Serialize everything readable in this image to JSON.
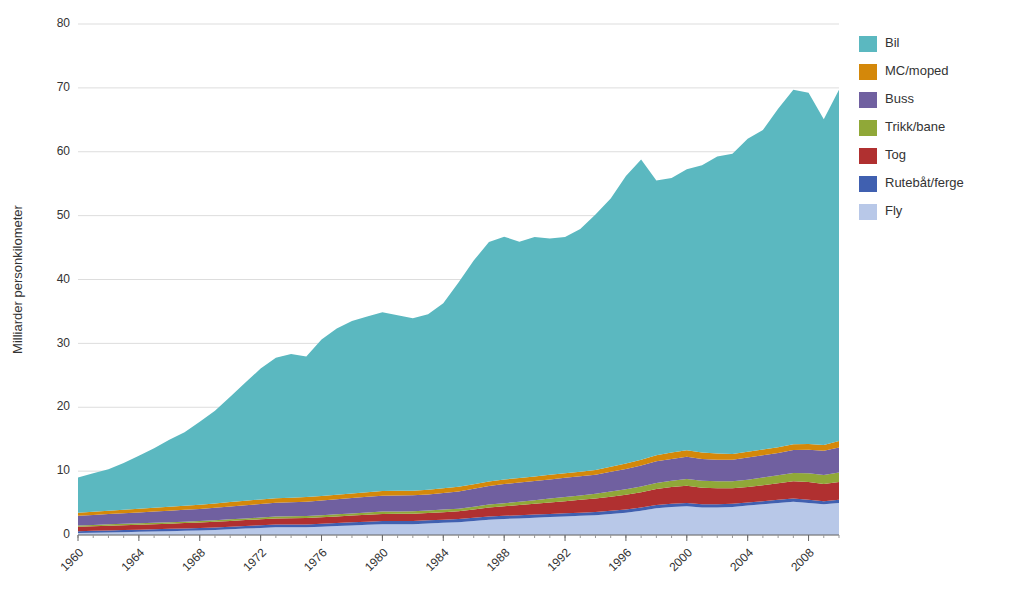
{
  "chart_data": {
    "type": "area",
    "stacked": true,
    "ylabel": "Milliarder personkilometer",
    "x": [
      1960,
      1961,
      1962,
      1963,
      1964,
      1965,
      1966,
      1967,
      1968,
      1969,
      1970,
      1971,
      1972,
      1973,
      1974,
      1975,
      1976,
      1977,
      1978,
      1979,
      1980,
      1981,
      1982,
      1983,
      1984,
      1985,
      1986,
      1987,
      1988,
      1989,
      1990,
      1991,
      1992,
      1993,
      1994,
      1995,
      1996,
      1997,
      1998,
      1999,
      2000,
      2001,
      2002,
      2003,
      2004,
      2005,
      2006,
      2007,
      2008,
      2009,
      2010
    ],
    "series": [
      {
        "name": "Fly",
        "color": "#B8C8E8",
        "values": [
          0.3,
          0.35,
          0.4,
          0.45,
          0.5,
          0.55,
          0.6,
          0.65,
          0.7,
          0.8,
          0.9,
          1.0,
          1.1,
          1.2,
          1.2,
          1.2,
          1.3,
          1.4,
          1.5,
          1.6,
          1.7,
          1.7,
          1.7,
          1.8,
          1.9,
          2.0,
          2.2,
          2.4,
          2.5,
          2.6,
          2.7,
          2.8,
          2.9,
          3.0,
          3.1,
          3.3,
          3.5,
          3.8,
          4.2,
          4.4,
          4.5,
          4.3,
          4.3,
          4.4,
          4.6,
          4.8,
          5.0,
          5.2,
          5.0,
          4.8,
          5.0
        ]
      },
      {
        "name": "Rutebåt/ferge",
        "color": "#4060B0",
        "values": [
          0.3,
          0.31,
          0.32,
          0.33,
          0.34,
          0.35,
          0.36,
          0.37,
          0.38,
          0.39,
          0.4,
          0.41,
          0.42,
          0.43,
          0.44,
          0.45,
          0.46,
          0.47,
          0.48,
          0.49,
          0.5,
          0.5,
          0.5,
          0.5,
          0.5,
          0.5,
          0.5,
          0.5,
          0.5,
          0.5,
          0.5,
          0.5,
          0.5,
          0.5,
          0.5,
          0.5,
          0.5,
          0.5,
          0.5,
          0.5,
          0.5,
          0.5,
          0.5,
          0.5,
          0.5,
          0.5,
          0.5,
          0.5,
          0.5,
          0.5,
          0.5
        ]
      },
      {
        "name": "Tog",
        "color": "#B03030",
        "values": [
          0.7,
          0.72,
          0.74,
          0.76,
          0.78,
          0.8,
          0.82,
          0.84,
          0.86,
          0.88,
          0.9,
          0.92,
          0.94,
          0.96,
          0.98,
          1.0,
          1.02,
          1.04,
          1.06,
          1.08,
          1.1,
          1.12,
          1.14,
          1.16,
          1.18,
          1.2,
          1.3,
          1.4,
          1.5,
          1.6,
          1.7,
          1.8,
          1.9,
          2.0,
          2.1,
          2.2,
          2.3,
          2.4,
          2.5,
          2.6,
          2.7,
          2.6,
          2.5,
          2.4,
          2.4,
          2.5,
          2.6,
          2.7,
          2.8,
          2.7,
          2.8
        ]
      },
      {
        "name": "Trikk/bane",
        "color": "#90A838",
        "values": [
          0.2,
          0.2,
          0.21,
          0.21,
          0.22,
          0.22,
          0.23,
          0.23,
          0.24,
          0.25,
          0.26,
          0.27,
          0.28,
          0.29,
          0.3,
          0.31,
          0.32,
          0.33,
          0.34,
          0.35,
          0.36,
          0.37,
          0.38,
          0.39,
          0.4,
          0.42,
          0.44,
          0.46,
          0.48,
          0.5,
          0.55,
          0.6,
          0.65,
          0.7,
          0.75,
          0.8,
          0.85,
          0.9,
          0.95,
          1.0,
          1.05,
          1.1,
          1.1,
          1.1,
          1.15,
          1.2,
          1.25,
          1.3,
          1.35,
          1.4,
          1.5
        ]
      },
      {
        "name": "Buss",
        "color": "#7060A0",
        "values": [
          1.5,
          1.55,
          1.6,
          1.65,
          1.7,
          1.75,
          1.8,
          1.85,
          1.9,
          1.95,
          2.0,
          2.05,
          2.1,
          2.15,
          2.2,
          2.25,
          2.3,
          2.35,
          2.4,
          2.45,
          2.5,
          2.5,
          2.5,
          2.5,
          2.6,
          2.7,
          2.8,
          2.9,
          3.0,
          3.0,
          3.0,
          3.0,
          3.0,
          3.0,
          3.0,
          3.1,
          3.2,
          3.3,
          3.4,
          3.4,
          3.5,
          3.4,
          3.4,
          3.4,
          3.5,
          3.5,
          3.5,
          3.6,
          3.7,
          3.8,
          3.9
        ]
      },
      {
        "name": "MC/moped",
        "color": "#D4880A",
        "values": [
          0.5,
          0.52,
          0.54,
          0.56,
          0.58,
          0.6,
          0.62,
          0.64,
          0.66,
          0.68,
          0.7,
          0.72,
          0.72,
          0.72,
          0.72,
          0.72,
          0.72,
          0.72,
          0.72,
          0.72,
          0.72,
          0.72,
          0.72,
          0.72,
          0.72,
          0.72,
          0.72,
          0.72,
          0.72,
          0.72,
          0.72,
          0.72,
          0.72,
          0.72,
          0.72,
          0.8,
          0.85,
          0.9,
          0.95,
          1.0,
          1.0,
          1.0,
          0.95,
          0.9,
          0.9,
          0.9,
          0.9,
          0.9,
          0.9,
          0.9,
          1.0
        ]
      },
      {
        "name": "Bil",
        "color": "#5BB8C0",
        "values": [
          5.5,
          6.0,
          6.5,
          7.3,
          8.3,
          9.3,
          10.5,
          11.5,
          13.0,
          14.5,
          16.5,
          18.5,
          20.5,
          22.0,
          22.5,
          22.0,
          24.5,
          26.0,
          27.0,
          27.5,
          28.0,
          27.5,
          27.0,
          27.5,
          29.0,
          32.0,
          35.0,
          37.5,
          38.0,
          37.0,
          37.5,
          37.0,
          37.0,
          38.0,
          40.0,
          42.0,
          45.0,
          47.0,
          43.0,
          43.0,
          44.0,
          45.0,
          46.5,
          47.0,
          49.0,
          50.0,
          53.0,
          55.5,
          55.0,
          51.0,
          55.0
        ]
      }
    ],
    "xlim": [
      1960,
      2010
    ],
    "xticks": [
      1960,
      1964,
      1968,
      1972,
      1976,
      1980,
      1984,
      1988,
      1992,
      1996,
      2000,
      2004,
      2008
    ],
    "ylim": [
      0,
      80
    ],
    "yticks": [
      0,
      10,
      20,
      30,
      40,
      50,
      60,
      70,
      80
    ],
    "grid": true,
    "legend": "right"
  }
}
